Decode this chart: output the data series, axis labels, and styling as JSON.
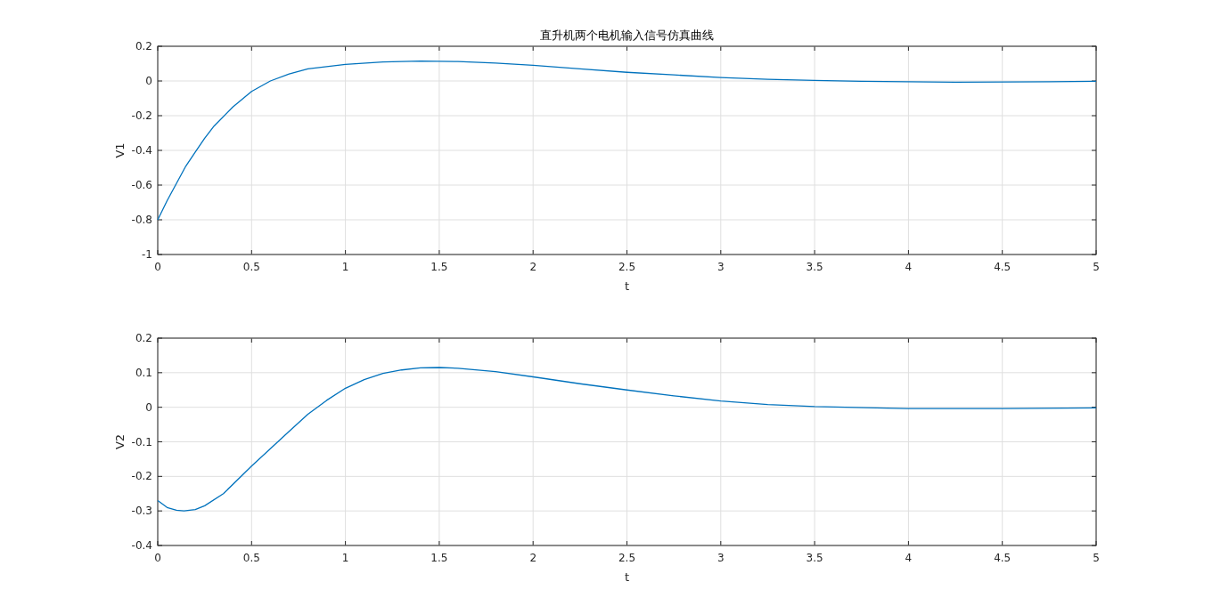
{
  "chart_data": [
    {
      "type": "line",
      "title": "直升机两个电机输入信号仿真曲线",
      "xlabel": "t",
      "ylabel": "V1",
      "color": "#0072bd",
      "grid": true,
      "x": [
        0,
        0.05,
        0.1,
        0.15,
        0.2,
        0.25,
        0.3,
        0.4,
        0.5,
        0.6,
        0.7,
        0.8,
        1.0,
        1.2,
        1.4,
        1.6,
        1.8,
        2.0,
        2.25,
        2.5,
        2.75,
        3.0,
        3.25,
        3.5,
        3.75,
        4.0,
        4.25,
        4.5,
        4.75,
        5.0
      ],
      "values": [
        -0.8,
        -0.69,
        -0.59,
        -0.49,
        -0.41,
        -0.33,
        -0.26,
        -0.15,
        -0.06,
        0.0,
        0.04,
        0.07,
        0.095,
        0.11,
        0.115,
        0.112,
        0.103,
        0.09,
        0.07,
        0.05,
        0.035,
        0.02,
        0.01,
        0.003,
        -0.002,
        -0.005,
        -0.007,
        -0.006,
        -0.004,
        -0.002
      ],
      "xlim": [
        0,
        5
      ],
      "ylim": [
        -1,
        0.2
      ],
      "xticks": [
        0,
        0.5,
        1,
        1.5,
        2,
        2.5,
        3,
        3.5,
        4,
        4.5,
        5
      ],
      "yticks": [
        -1,
        -0.8,
        -0.6,
        -0.4,
        -0.2,
        0,
        0.2
      ]
    },
    {
      "type": "line",
      "xlabel": "t",
      "ylabel": "V2",
      "color": "#0072bd",
      "grid": true,
      "x": [
        0,
        0.05,
        0.1,
        0.14,
        0.2,
        0.25,
        0.35,
        0.5,
        0.6,
        0.7,
        0.8,
        0.9,
        1.0,
        1.1,
        1.2,
        1.3,
        1.4,
        1.5,
        1.6,
        1.8,
        2.0,
        2.25,
        2.5,
        2.75,
        3.0,
        3.25,
        3.5,
        4.0,
        4.5,
        5.0
      ],
      "values": [
        -0.27,
        -0.29,
        -0.298,
        -0.3,
        -0.296,
        -0.285,
        -0.25,
        -0.17,
        -0.12,
        -0.07,
        -0.02,
        0.02,
        0.055,
        0.08,
        0.098,
        0.108,
        0.114,
        0.115,
        0.113,
        0.103,
        0.088,
        0.068,
        0.05,
        0.033,
        0.018,
        0.008,
        0.002,
        -0.004,
        -0.004,
        -0.002
      ],
      "xlim": [
        0,
        5
      ],
      "ylim": [
        -0.4,
        0.2
      ],
      "xticks": [
        0,
        0.5,
        1,
        1.5,
        2,
        2.5,
        3,
        3.5,
        4,
        4.5,
        5
      ],
      "yticks": [
        -0.4,
        -0.3,
        -0.2,
        -0.1,
        0,
        0.1,
        0.2
      ]
    }
  ]
}
